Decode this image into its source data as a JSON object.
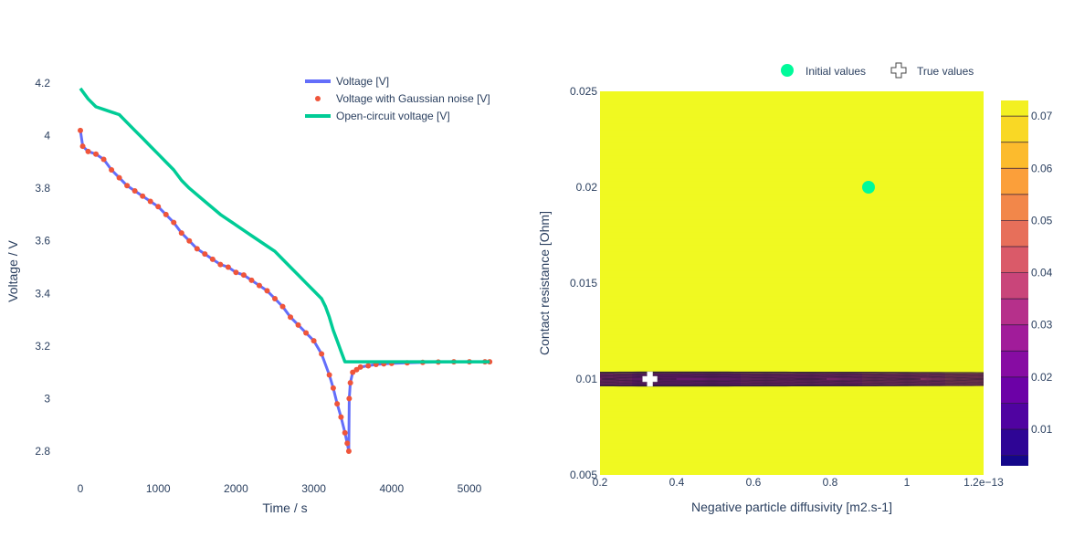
{
  "chart_data": [
    {
      "type": "line",
      "xlabel": "Time / s",
      "ylabel": "Voltage / V",
      "xlim": [
        -100,
        5400
      ],
      "ylim": [
        2.73,
        4.27
      ],
      "x_ticks": [
        0,
        1000,
        2000,
        3000,
        4000,
        5000
      ],
      "y_ticks": [
        2.8,
        3,
        3.2,
        3.4,
        3.6,
        3.8,
        4,
        4.2
      ],
      "x_tick_labels": [
        "0",
        "1000",
        "2000",
        "3000",
        "4000",
        "5000"
      ],
      "y_tick_labels": [
        "2.8",
        "3",
        "3.2",
        "3.4",
        "3.6",
        "3.8",
        "4",
        "4.2"
      ],
      "legend_position": "top-right",
      "series": [
        {
          "name": "Voltage [V]",
          "mode": "line",
          "color": "#636efa",
          "x": [
            0,
            30,
            100,
            200,
            300,
            400,
            500,
            600,
            700,
            800,
            900,
            1000,
            1100,
            1200,
            1300,
            1400,
            1500,
            1600,
            1700,
            1800,
            1900,
            2000,
            2100,
            2200,
            2300,
            2400,
            2500,
            2600,
            2700,
            2800,
            2900,
            3000,
            3100,
            3200,
            3250,
            3300,
            3350,
            3400,
            3430,
            3450,
            3455,
            3470,
            3500,
            3550,
            3600,
            3700,
            3800,
            3900,
            4000,
            4200,
            4400,
            4600,
            4800,
            5000,
            5200,
            5260
          ],
          "y": [
            4.02,
            3.96,
            3.94,
            3.93,
            3.91,
            3.87,
            3.84,
            3.81,
            3.79,
            3.77,
            3.75,
            3.73,
            3.7,
            3.67,
            3.63,
            3.6,
            3.57,
            3.55,
            3.53,
            3.51,
            3.5,
            3.48,
            3.47,
            3.45,
            3.43,
            3.41,
            3.38,
            3.35,
            3.31,
            3.28,
            3.25,
            3.22,
            3.17,
            3.09,
            3.04,
            2.98,
            2.93,
            2.87,
            2.83,
            2.8,
            3.0,
            3.06,
            3.1,
            3.11,
            3.12,
            3.125,
            3.13,
            3.132,
            3.134,
            3.136,
            3.138,
            3.139,
            3.14,
            3.14,
            3.14,
            3.14
          ]
        },
        {
          "name": "Voltage with Gaussian noise [V]",
          "mode": "markers",
          "color": "#ef553b",
          "x": [
            0,
            30,
            100,
            200,
            300,
            400,
            500,
            600,
            700,
            800,
            900,
            1000,
            1100,
            1200,
            1300,
            1400,
            1500,
            1600,
            1700,
            1800,
            1900,
            2000,
            2100,
            2200,
            2300,
            2400,
            2500,
            2600,
            2700,
            2800,
            2900,
            3000,
            3100,
            3200,
            3250,
            3300,
            3350,
            3400,
            3430,
            3450,
            3455,
            3470,
            3500,
            3550,
            3600,
            3700,
            3800,
            3900,
            4000,
            4200,
            4400,
            4600,
            4800,
            5000,
            5200,
            5260
          ],
          "y": [
            4.02,
            3.96,
            3.94,
            3.93,
            3.91,
            3.87,
            3.84,
            3.81,
            3.79,
            3.77,
            3.75,
            3.73,
            3.7,
            3.67,
            3.63,
            3.6,
            3.57,
            3.55,
            3.53,
            3.51,
            3.5,
            3.48,
            3.47,
            3.45,
            3.43,
            3.41,
            3.38,
            3.35,
            3.31,
            3.28,
            3.25,
            3.22,
            3.17,
            3.09,
            3.04,
            2.98,
            2.93,
            2.87,
            2.83,
            2.8,
            3.0,
            3.06,
            3.1,
            3.11,
            3.12,
            3.125,
            3.13,
            3.132,
            3.134,
            3.136,
            3.138,
            3.139,
            3.14,
            3.14,
            3.14,
            3.14
          ]
        },
        {
          "name": "Open-circuit voltage [V]",
          "mode": "line",
          "color": "#00cc96",
          "x": [
            0,
            100,
            200,
            300,
            400,
            500,
            600,
            700,
            800,
            900,
            1000,
            1100,
            1200,
            1300,
            1400,
            1600,
            1800,
            2000,
            2200,
            2400,
            2500,
            2600,
            2700,
            2800,
            2900,
            3000,
            3100,
            3150,
            3200,
            3250,
            3300,
            3350,
            3400,
            3450,
            3500,
            3700,
            4000,
            4500,
            5000,
            5260
          ],
          "y": [
            4.18,
            4.14,
            4.11,
            4.1,
            4.09,
            4.08,
            4.05,
            4.02,
            3.99,
            3.96,
            3.93,
            3.9,
            3.87,
            3.83,
            3.8,
            3.75,
            3.7,
            3.66,
            3.62,
            3.58,
            3.56,
            3.53,
            3.5,
            3.47,
            3.44,
            3.41,
            3.38,
            3.35,
            3.31,
            3.26,
            3.22,
            3.18,
            3.14,
            3.14,
            3.14,
            3.14,
            3.14,
            3.14,
            3.14,
            3.14
          ]
        }
      ]
    },
    {
      "type": "contour",
      "xlabel": "Negative particle diffusivity [m2.s-1]",
      "ylabel": "Contact resistance [Ohm]",
      "xlim": [
        0.2,
        1.2
      ],
      "ylim": [
        0.005,
        0.025
      ],
      "x_ticks": [
        0.2,
        0.4,
        0.6,
        0.8,
        1.0,
        1.2
      ],
      "y_ticks": [
        0.005,
        0.01,
        0.015,
        0.02,
        0.025
      ],
      "x_tick_labels": [
        "0.2",
        "0.4",
        "0.6",
        "0.8",
        "1",
        "1.2e−13"
      ],
      "y_tick_labels": [
        "0.005",
        "0.01",
        "0.015",
        "0.02",
        "0.025"
      ],
      "colorscale": "Plasma",
      "colorbar_range": [
        0.003,
        0.073
      ],
      "colorbar_ticks": [
        0.01,
        0.02,
        0.03,
        0.04,
        0.05,
        0.06,
        0.07
      ],
      "colorbar_tick_labels": [
        "0.01",
        "0.02",
        "0.03",
        "0.04",
        "0.05",
        "0.06",
        "0.07"
      ],
      "contour_levels": [
        0.005,
        0.01,
        0.015,
        0.02,
        0.025,
        0.03,
        0.035,
        0.04,
        0.045,
        0.05,
        0.055,
        0.06,
        0.065,
        0.07
      ],
      "legend_position": "top",
      "markers": [
        {
          "name": "Initial values",
          "symbol": "circle",
          "color": "#00fa9a",
          "x": [
            0.9
          ],
          "y": [
            0.02
          ]
        },
        {
          "name": "True values",
          "symbol": "cross",
          "color": "#ffffff",
          "x": [
            0.33
          ],
          "y": [
            0.01
          ]
        }
      ]
    }
  ]
}
